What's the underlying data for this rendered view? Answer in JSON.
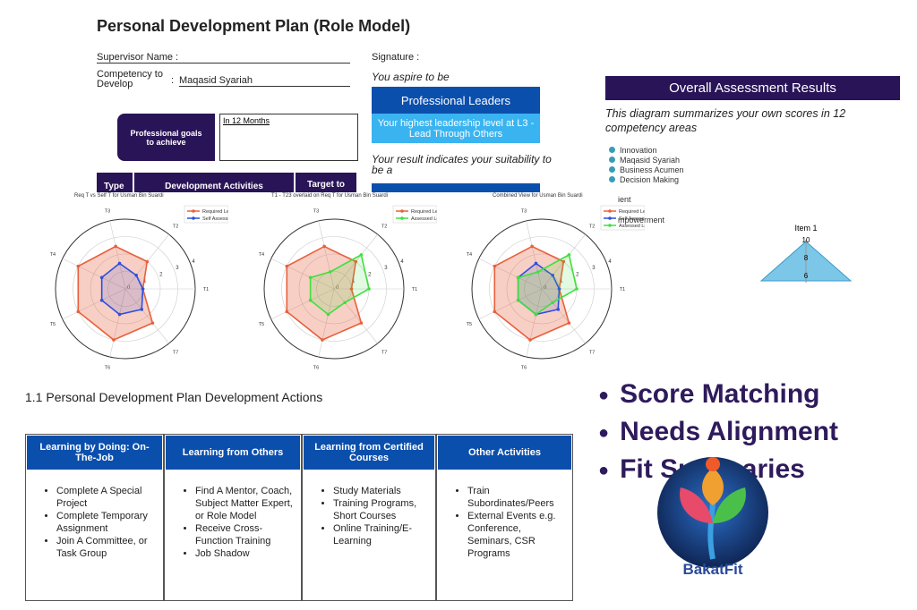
{
  "pdp": {
    "title": "Personal Development Plan (Role Model)",
    "supervisor_label": "Supervisor Name :",
    "competency_label": "Competency to Develop",
    "competency_value": "Maqasid Syariah",
    "signature_label": "Signature :",
    "aspire_text": "You aspire to be",
    "leader_title": "Professional Leaders",
    "leader_sub": "Your highest leadership level at L3 - Lead Through Others",
    "goals_label": "Professional goals to achieve",
    "goals_value": "In 12 Months",
    "suitability_text": "Your result indicates your suitability to be a",
    "table_headers": [
      "Type",
      "Development Activities",
      "Target to"
    ]
  },
  "overall": {
    "title": "Overall Assessment Results",
    "description": "This diagram summarizes your own scores in 12 competency areas",
    "items": [
      "Innovation",
      "Maqasid Syariah",
      "Business Acumen",
      "Decision Making"
    ],
    "partial_items": [
      "ient",
      "mpowerment"
    ],
    "item_chart": {
      "title": "Item 1",
      "ticks": [
        10,
        8,
        6
      ]
    }
  },
  "charts": [
    {
      "type": "radar",
      "title": "Req T vs Self T for Usman Bin Suardi",
      "categories": [
        "T1",
        "T2",
        "T3",
        "T4",
        "T5",
        "T6",
        "T7"
      ],
      "rlim": [
        0,
        4
      ],
      "rticks": [
        0,
        1,
        2,
        3,
        4
      ],
      "series": [
        {
          "name": "Required Level",
          "color": "#e8603c",
          "values": [
            1,
            2,
            2.5,
            3,
            3,
            3,
            2.5
          ]
        },
        {
          "name": "Self Assessment",
          "color": "#2b4fe0",
          "values": [
            1,
            1,
            1.5,
            1.5,
            1.5,
            1.5,
            1.5
          ]
        }
      ]
    },
    {
      "type": "radar",
      "title": "T1 - T23 overlaid on Req T for Usman Bin Suardi",
      "categories": [
        "T1",
        "T2",
        "T3",
        "T4",
        "T5",
        "T6",
        "T7"
      ],
      "rlim": [
        0,
        4
      ],
      "rticks": [
        0,
        1,
        2,
        3,
        4
      ],
      "series": [
        {
          "name": "Required Level",
          "color": "#e8603c",
          "values": [
            1,
            2,
            2.5,
            3,
            3,
            3,
            2.5
          ]
        },
        {
          "name": "Assessed Level",
          "color": "#3ee03e",
          "values": [
            2,
            2.5,
            1,
            1.5,
            1.5,
            1.5,
            1
          ]
        }
      ]
    },
    {
      "type": "radar",
      "title": "Combined View for Usman Bin Suardi",
      "categories": [
        "T1",
        "T2",
        "T3",
        "T4",
        "T5",
        "T6",
        "T7"
      ],
      "rlim": [
        0,
        4
      ],
      "rticks": [
        0,
        1,
        2,
        3,
        4
      ],
      "series": [
        {
          "name": "Required Level",
          "color": "#e8603c",
          "values": [
            1,
            2,
            2.5,
            3,
            3,
            3,
            2.5
          ]
        },
        {
          "name": "Self Assessment",
          "color": "#2b4fe0",
          "values": [
            1,
            1,
            1.5,
            1.5,
            1.5,
            1.5,
            1.5
          ]
        },
        {
          "name": "Assessed Level",
          "color": "#3ee03e",
          "values": [
            2,
            2.5,
            1,
            1.5,
            1.5,
            1.5,
            1
          ]
        }
      ]
    }
  ],
  "actions": {
    "title": "1.1 Personal Development Plan Development Actions",
    "columns": [
      {
        "header": "Learning by Doing: On-The-Job",
        "items": [
          "Complete A Special Project",
          "Complete Temporary Assignment",
          "Join A Committee, or Task Group"
        ]
      },
      {
        "header": "Learning from Others",
        "items": [
          "Find A Mentor, Coach, Subject Matter Expert, or Role Model",
          "Receive Cross-Function Training",
          "Job Shadow"
        ]
      },
      {
        "header": "Learning from Certified Courses",
        "items": [
          "Study Materials",
          "Training Programs, Short Courses",
          "Online Training/E-Learning"
        ]
      },
      {
        "header": "Other Activities",
        "items": [
          "Train Subordinates/Peers",
          "External Events e.g. Conference, Seminars, CSR Programs"
        ]
      }
    ]
  },
  "features": [
    "Score Matching",
    "Needs Alignment",
    "Fit Summaries"
  ],
  "brand": "BakatFit"
}
